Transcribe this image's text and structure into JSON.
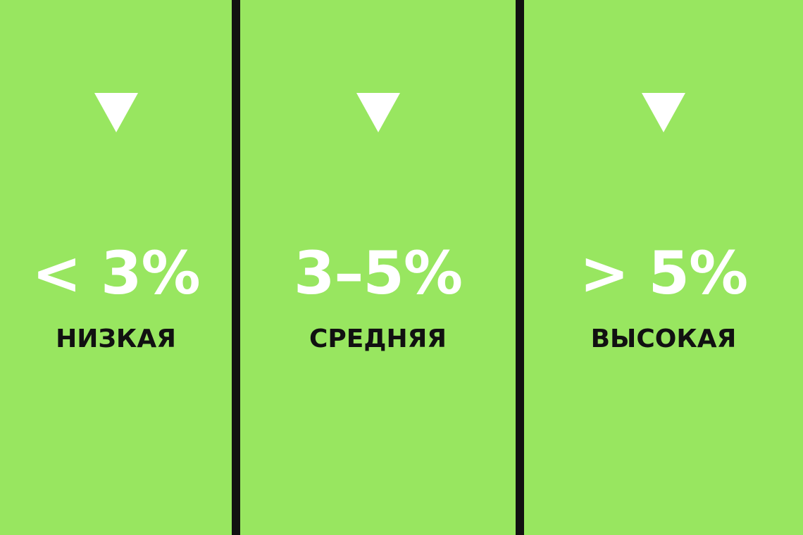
{
  "colors": {
    "background": "#98e660",
    "divider": "#111111",
    "value_text": "#ffffff",
    "label_text": "#111111"
  },
  "columns": [
    {
      "icon": "triangle-down-icon",
      "value": "< 3%",
      "label": "НИЗКАЯ"
    },
    {
      "icon": "triangle-down-icon",
      "value": "3–5%",
      "label": "СРЕДНЯЯ"
    },
    {
      "icon": "triangle-down-icon",
      "value": "> 5%",
      "label": "ВЫСОКАЯ"
    }
  ]
}
